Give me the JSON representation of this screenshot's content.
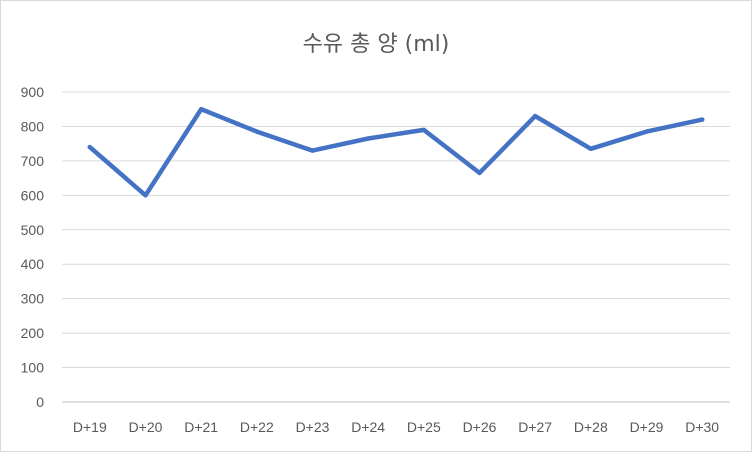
{
  "chart_data": {
    "type": "line",
    "title": "수유 총 양 (ml)",
    "categories": [
      "D+19",
      "D+20",
      "D+21",
      "D+22",
      "D+23",
      "D+24",
      "D+25",
      "D+26",
      "D+27",
      "D+28",
      "D+29",
      "D+30"
    ],
    "series": [
      {
        "values": [
          740,
          600,
          850,
          785,
          730,
          765,
          790,
          665,
          830,
          735,
          785,
          820
        ]
      }
    ],
    "y_ticks": [
      "0",
      "100",
      "200",
      "300",
      "400",
      "500",
      "600",
      "700",
      "800",
      "900"
    ],
    "ylim": [
      0,
      900
    ],
    "grid": true,
    "legend": "none",
    "colors": {
      "line": "#4472C4",
      "grid": "#d9d9d9",
      "text": "#595959"
    }
  }
}
